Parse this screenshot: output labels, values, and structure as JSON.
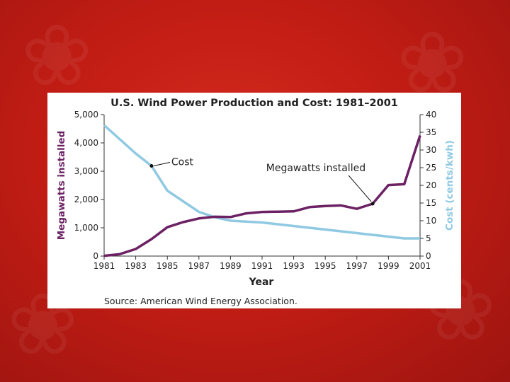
{
  "colors": {
    "megawatts": "#6b2163",
    "cost": "#8fc9e2",
    "background": "#c21d14"
  },
  "icons": [
    "maple-leaf-icon"
  ],
  "chart_data": {
    "type": "line",
    "title": "U.S. Wind Power Production and Cost: 1981–2001",
    "xlabel": "Year",
    "ylabel_left": "Megawatts installed",
    "ylabel_right": "Cost (cents/kwh)",
    "x": [
      1981,
      1982,
      1983,
      1984,
      1985,
      1986,
      1987,
      1988,
      1989,
      1990,
      1991,
      1992,
      1993,
      1994,
      1995,
      1996,
      1997,
      1998,
      1999,
      2000,
      2001
    ],
    "x_ticks": [
      "1981",
      "1983",
      "1985",
      "1987",
      "1989",
      "1991",
      "1993",
      "1995",
      "1997",
      "1999",
      "2001"
    ],
    "y_left_ticks": [
      "0",
      "1,000",
      "2,000",
      "3,000",
      "4,000",
      "5,000"
    ],
    "y_right_ticks": [
      "0",
      "5",
      "10",
      "15",
      "20",
      "25",
      "30",
      "35",
      "40"
    ],
    "ylim_left": [
      0,
      5000
    ],
    "ylim_right": [
      0,
      40
    ],
    "xlim": [
      1981,
      2001
    ],
    "grid": false,
    "series": [
      {
        "name": "Megawatts installed",
        "axis": "left",
        "values": [
          10,
          70,
          250,
          600,
          1020,
          1200,
          1330,
          1390,
          1380,
          1510,
          1560,
          1570,
          1580,
          1730,
          1770,
          1790,
          1670,
          1850,
          2510,
          2540,
          4260
        ]
      },
      {
        "name": "Cost",
        "axis": "right",
        "values": [
          37,
          33,
          29,
          25.5,
          18.5,
          15.5,
          12.5,
          11,
          10,
          9.75,
          9.5,
          9,
          8.5,
          8,
          7.5,
          7,
          6.5,
          6,
          5.5,
          5,
          5
        ]
      }
    ],
    "annotations": [
      {
        "text": "Cost",
        "series": "Cost",
        "x": 1984
      },
      {
        "text": "Megawatts installed",
        "series": "Megawatts installed",
        "x": 1998
      }
    ],
    "source": "Source: American Wind Energy Association."
  }
}
